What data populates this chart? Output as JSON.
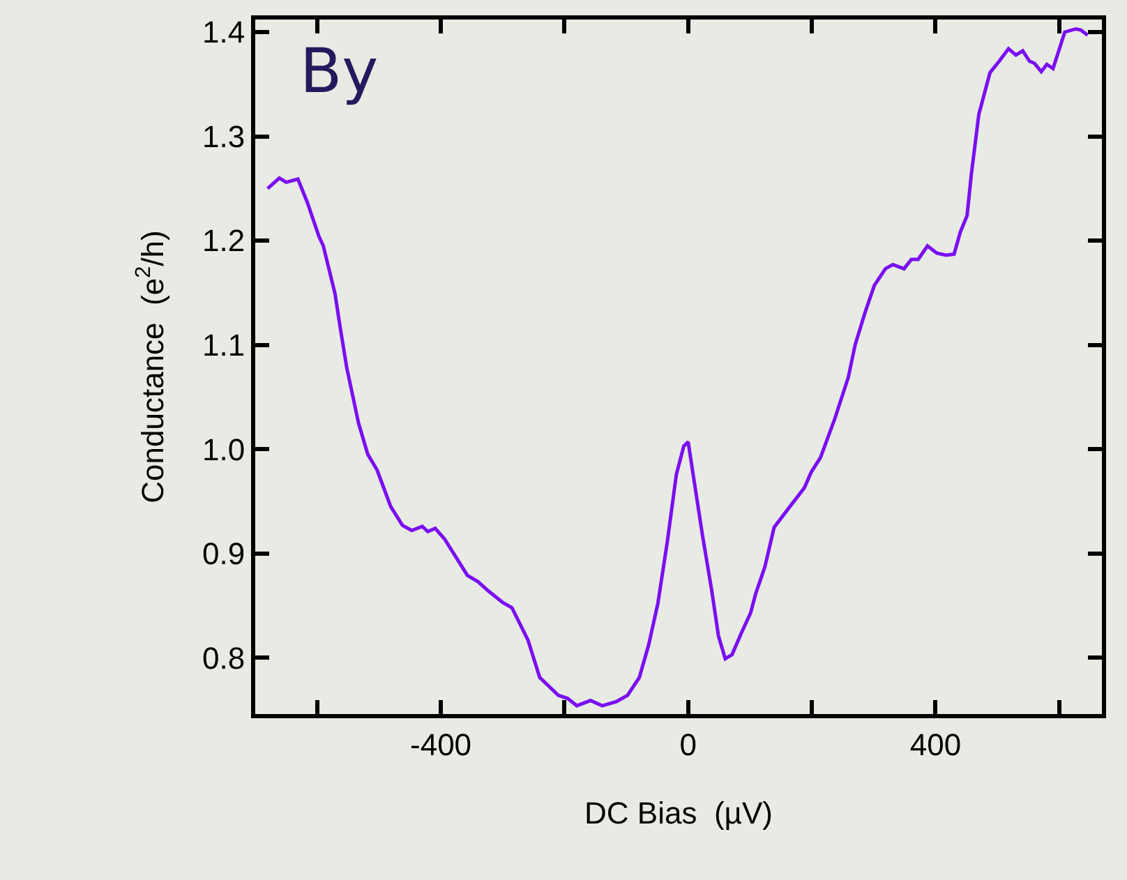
{
  "chart_data": {
    "type": "line",
    "xlabel": "DC Bias  (µV)",
    "ylabel": "Conductance  (e$^{2}$/h)",
    "annotations": [
      "By"
    ],
    "xlim": [
      -700,
      669
    ],
    "ylim": [
      0.746,
      1.412
    ],
    "xticks": [
      {
        "value": -600,
        "label": null
      },
      -400,
      {
        "value": -200,
        "label": null
      },
      0,
      {
        "value": 200,
        "label": null
      },
      400,
      {
        "value": 600,
        "label": null
      }
    ],
    "yticks": [
      {
        "value": 0.8,
        "label": "0.8"
      },
      {
        "value": 0.9,
        "label": "0.9"
      },
      {
        "value": 1.0,
        "label": "1.0"
      },
      {
        "value": 1.1,
        "label": "1.1"
      },
      {
        "value": 1.2,
        "label": "1.2"
      },
      {
        "value": 1.3,
        "label": "1.3"
      },
      {
        "value": 1.4,
        "label": "1.4"
      }
    ],
    "grid": false,
    "marker": "none",
    "line_style": "solid",
    "series": [
      {
        "color": "#7a0ff0",
        "x": [
          -680,
          -661,
          -650,
          -631,
          -616,
          -597,
          -590,
          -571,
          -563,
          -552,
          -533,
          -518,
          -503,
          -481,
          -462,
          -447,
          -430,
          -421,
          -409,
          -394,
          -375,
          -357,
          -340,
          -323,
          -300,
          -285,
          -259,
          -240,
          -210,
          -195,
          -180,
          -158,
          -139,
          -116,
          -98,
          -79,
          -64,
          -49,
          -34,
          -19,
          -7,
          0,
          8,
          23,
          38,
          49,
          60,
          71,
          87,
          101,
          109,
          124,
          139,
          162,
          188,
          199,
          214,
          237,
          259,
          270,
          286,
          301,
          319,
          331,
          349,
          361,
          372,
          387,
          402,
          417,
          430,
          440,
          451,
          458,
          470,
          488,
          503,
          518,
          530,
          541,
          552,
          560,
          571,
          580,
          590,
          609,
          627,
          635,
          646
        ],
        "values": [
          1.25,
          1.26,
          1.256,
          1.259,
          1.237,
          1.204,
          1.195,
          1.149,
          1.118,
          1.078,
          1.025,
          0.995,
          0.98,
          0.945,
          0.927,
          0.922,
          0.926,
          0.921,
          0.924,
          0.914,
          0.896,
          0.879,
          0.873,
          0.864,
          0.853,
          0.848,
          0.817,
          0.781,
          0.764,
          0.761,
          0.754,
          0.759,
          0.754,
          0.758,
          0.764,
          0.781,
          0.812,
          0.852,
          0.91,
          0.976,
          1.003,
          1.007,
          0.976,
          0.918,
          0.865,
          0.821,
          0.799,
          0.803,
          0.825,
          0.843,
          0.861,
          0.887,
          0.925,
          0.943,
          0.963,
          0.978,
          0.992,
          1.029,
          1.069,
          1.1,
          1.131,
          1.157,
          1.173,
          1.177,
          1.173,
          1.182,
          1.182,
          1.195,
          1.188,
          1.186,
          1.187,
          1.208,
          1.224,
          1.264,
          1.321,
          1.361,
          1.372,
          1.384,
          1.378,
          1.382,
          1.372,
          1.37,
          1.362,
          1.369,
          1.365,
          1.4,
          1.403,
          1.402,
          1.397
        ]
      }
    ]
  }
}
